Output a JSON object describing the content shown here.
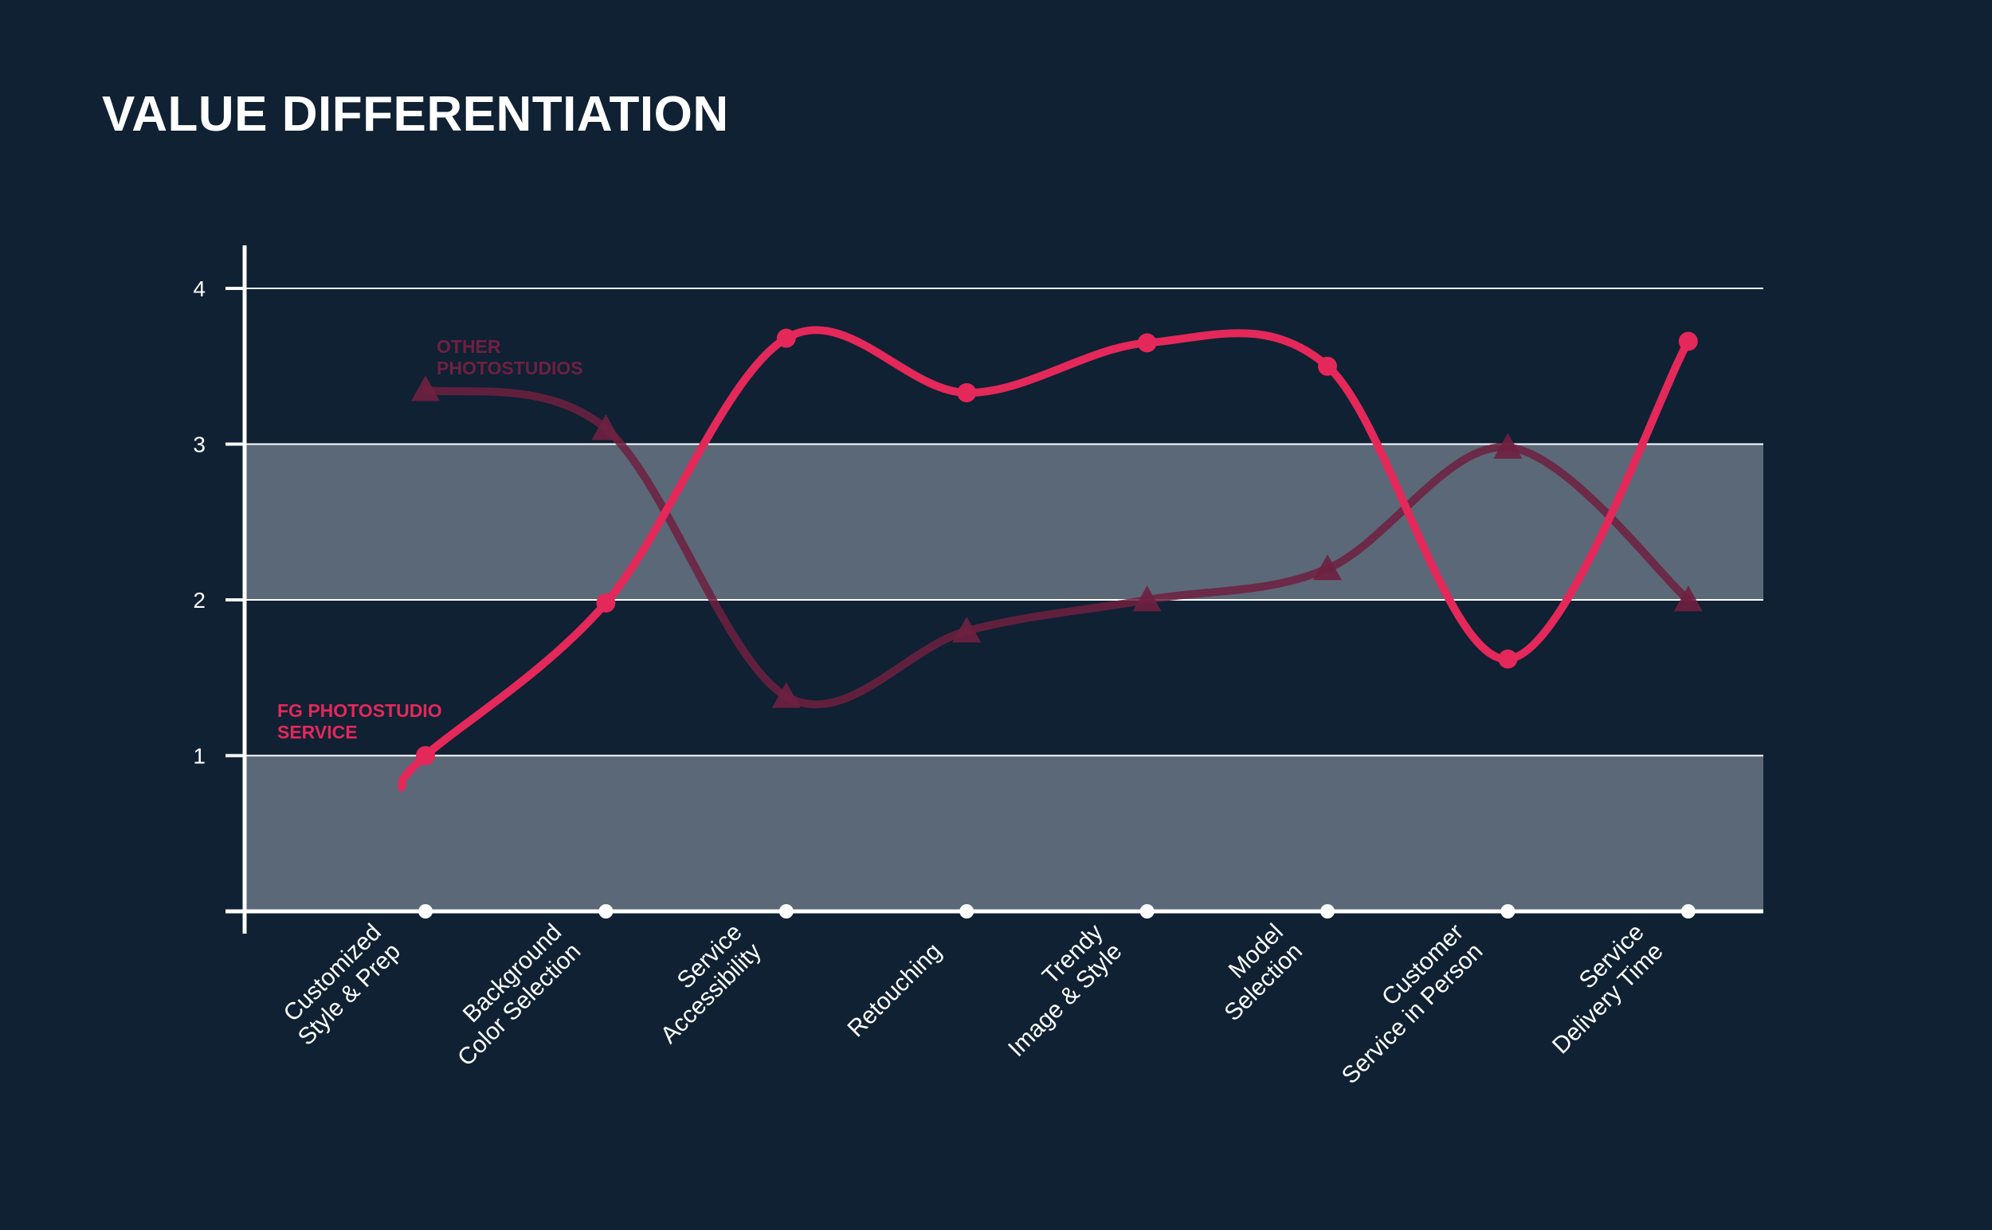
{
  "title": "VALUE DIFFERENTIATION",
  "colors": {
    "background": "#0f2133",
    "band": "#5b6877",
    "fg_series": "#e4285a",
    "other_series": "#6f2040",
    "axis": "#ffffff"
  },
  "chart_data": {
    "type": "line",
    "title": "VALUE DIFFERENTIATION",
    "xlabel": "",
    "ylabel": "",
    "ylim": [
      0,
      4
    ],
    "y_ticks": [
      "1",
      "2",
      "3",
      "4"
    ],
    "grid": true,
    "shaded_bands": [
      [
        0,
        1
      ],
      [
        2,
        3
      ]
    ],
    "categories": [
      [
        "Customized",
        "Style & Prep"
      ],
      [
        "Background",
        "Color Selection"
      ],
      [
        "Service",
        "Accessibility"
      ],
      [
        "Retouching"
      ],
      [
        "Trendy",
        "Image & Style"
      ],
      [
        "Model",
        "Selection"
      ],
      [
        "Customer",
        "Service in Person"
      ],
      [
        "Service",
        "Delivery Time"
      ]
    ],
    "series": [
      {
        "name": "FG PHOTOSTUDIO SERVICE",
        "label_lines": [
          "FG PHOTOSTUDIO",
          "SERVICE"
        ],
        "color": "#e4285a",
        "marker": "circle",
        "values": [
          1.0,
          1.98,
          3.68,
          3.33,
          3.65,
          3.5,
          1.62,
          3.66
        ]
      },
      {
        "name": "OTHER PHOTOSTUDIOS",
        "label_lines": [
          "OTHER",
          "PHOTOSTUDIOS"
        ],
        "color": "#6f2040",
        "marker": "triangle",
        "values": [
          3.35,
          3.1,
          1.38,
          1.8,
          2.0,
          2.2,
          2.98,
          2.0
        ]
      }
    ]
  }
}
